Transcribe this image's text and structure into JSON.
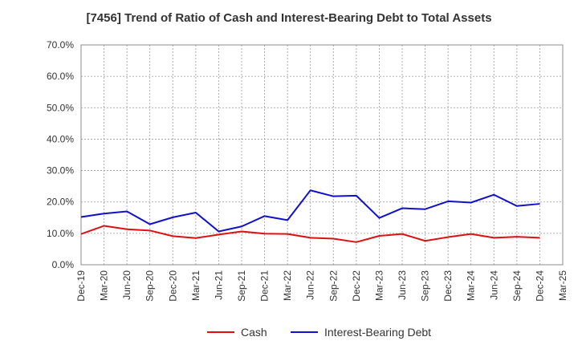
{
  "chart_data": {
    "type": "line",
    "title": "[7456]  Trend of Ratio of Cash and Interest-Bearing Debt to Total Assets",
    "xlabel": "",
    "ylabel": "",
    "x_ticks": [
      "Dec-19",
      "Mar-20",
      "Jun-20",
      "Sep-20",
      "Dec-20",
      "Mar-21",
      "Jun-21",
      "Sep-21",
      "Dec-21",
      "Mar-22",
      "Jun-22",
      "Sep-22",
      "Dec-22",
      "Mar-23",
      "Jun-23",
      "Sep-23",
      "Dec-23",
      "Mar-24",
      "Jun-24",
      "Sep-24",
      "Dec-24",
      "Mar-25"
    ],
    "y_ticks": [
      "0.0%",
      "10.0%",
      "20.0%",
      "30.0%",
      "40.0%",
      "50.0%",
      "60.0%",
      "70.0%"
    ],
    "ylim": [
      0,
      70
    ],
    "grid": true,
    "legend_position": "bottom",
    "categories": [
      "Dec-19",
      "Mar-20",
      "Jun-20",
      "Sep-20",
      "Dec-20",
      "Mar-21",
      "Jun-21",
      "Sep-21",
      "Dec-21",
      "Mar-22",
      "Jun-22",
      "Sep-22",
      "Dec-22",
      "Mar-23",
      "Jun-23",
      "Sep-23",
      "Dec-23",
      "Mar-24",
      "Jun-24",
      "Sep-24",
      "Dec-24"
    ],
    "series": [
      {
        "name": "Cash",
        "color": "#dd1111",
        "values": [
          9.8,
          12.4,
          11.3,
          10.9,
          9.1,
          8.5,
          9.6,
          10.6,
          9.9,
          9.8,
          8.6,
          8.3,
          7.2,
          9.2,
          9.8,
          7.6,
          8.8,
          9.8,
          8.6,
          8.9,
          8.6
        ]
      },
      {
        "name": "Interest-Bearing Debt",
        "color": "#1111cc",
        "values": [
          15.2,
          16.3,
          17.0,
          12.9,
          15.1,
          16.6,
          10.6,
          12.2,
          15.5,
          14.2,
          23.7,
          21.8,
          22.0,
          14.9,
          18.0,
          17.7,
          20.2,
          19.8,
          22.3,
          18.7,
          19.4
        ]
      }
    ]
  }
}
